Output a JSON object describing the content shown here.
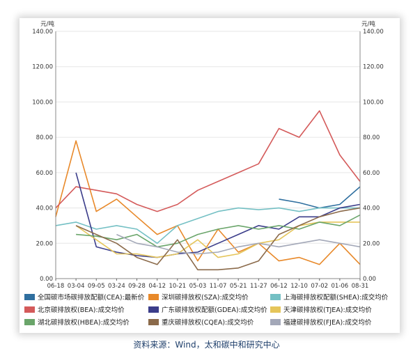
{
  "source_note": "资料来源：Wind，太和碳中和研究中心",
  "chart_data": {
    "type": "line",
    "title": "",
    "ylabel_left": "元/吨",
    "ylabel_right": "元/吨",
    "ylim": [
      0,
      140
    ],
    "yticks": [
      "0.00",
      "20.00",
      "40.00",
      "60.00",
      "80.00",
      "100.00",
      "120.00",
      "140.00"
    ],
    "xticks": [
      "06-18",
      "03-04",
      "09-05",
      "03-24",
      "09-28",
      "04-12",
      "10-21",
      "05-03",
      "11-07",
      "05-21",
      "11-27",
      "06-12",
      "12-10",
      "07-02",
      "01-06",
      "08-31"
    ],
    "legend_position": "bottom",
    "grid": true,
    "series": [
      {
        "name": "全国碳市场碳排放配额(CEA):最新价",
        "color": "#2f6f9f",
        "values": [
          null,
          null,
          null,
          null,
          null,
          null,
          null,
          null,
          null,
          null,
          null,
          45,
          43,
          40,
          42,
          52
        ]
      },
      {
        "name": "深圳碳排放权(SZA):成交均价",
        "color": "#e8892a",
        "values": [
          35,
          78,
          38,
          45,
          35,
          25,
          30,
          10,
          28,
          15,
          20,
          10,
          12,
          8,
          20,
          8
        ]
      },
      {
        "name": "上海碳排放权配额(SHEA):成交均价",
        "color": "#74c0c4",
        "values": [
          30,
          32,
          28,
          30,
          28,
          20,
          30,
          34,
          38,
          40,
          39,
          40,
          38,
          40,
          40,
          40
        ]
      },
      {
        "name": "北京碳排放权(BEA):成交均价",
        "color": "#d45a5a",
        "values": [
          40,
          52,
          50,
          48,
          42,
          38,
          42,
          50,
          55,
          60,
          65,
          85,
          80,
          95,
          70,
          55
        ]
      },
      {
        "name": "广东碳排放权配额(GDEA):成交均价",
        "color": "#3b3d8a",
        "values": [
          null,
          60,
          18,
          15,
          13,
          12,
          14,
          15,
          20,
          25,
          30,
          28,
          35,
          35,
          40,
          42
        ]
      },
      {
        "name": "天津碳排放权(TJEA):成交均价",
        "color": "#e5c55a",
        "values": [
          null,
          30,
          22,
          14,
          14,
          12,
          14,
          22,
          12,
          14,
          20,
          22,
          30,
          32,
          32,
          32
        ]
      },
      {
        "name": "湖北碳排放权(HBEA):成交均价",
        "color": "#6aa56a",
        "values": [
          null,
          25,
          24,
          22,
          25,
          18,
          20,
          25,
          28,
          30,
          28,
          30,
          28,
          32,
          30,
          36
        ]
      },
      {
        "name": "重庆碳排放权(CQEA):成交均价",
        "color": "#8b6a4a",
        "values": [
          null,
          30,
          25,
          20,
          12,
          8,
          22,
          5,
          5,
          6,
          10,
          25,
          30,
          35,
          38,
          40
        ]
      },
      {
        "name": "福建碳排放权(FJEA):成交均价",
        "color": "#a3a8b8",
        "values": [
          null,
          null,
          null,
          25,
          20,
          18,
          15,
          14,
          15,
          18,
          20,
          18,
          20,
          22,
          20,
          18
        ]
      }
    ]
  }
}
